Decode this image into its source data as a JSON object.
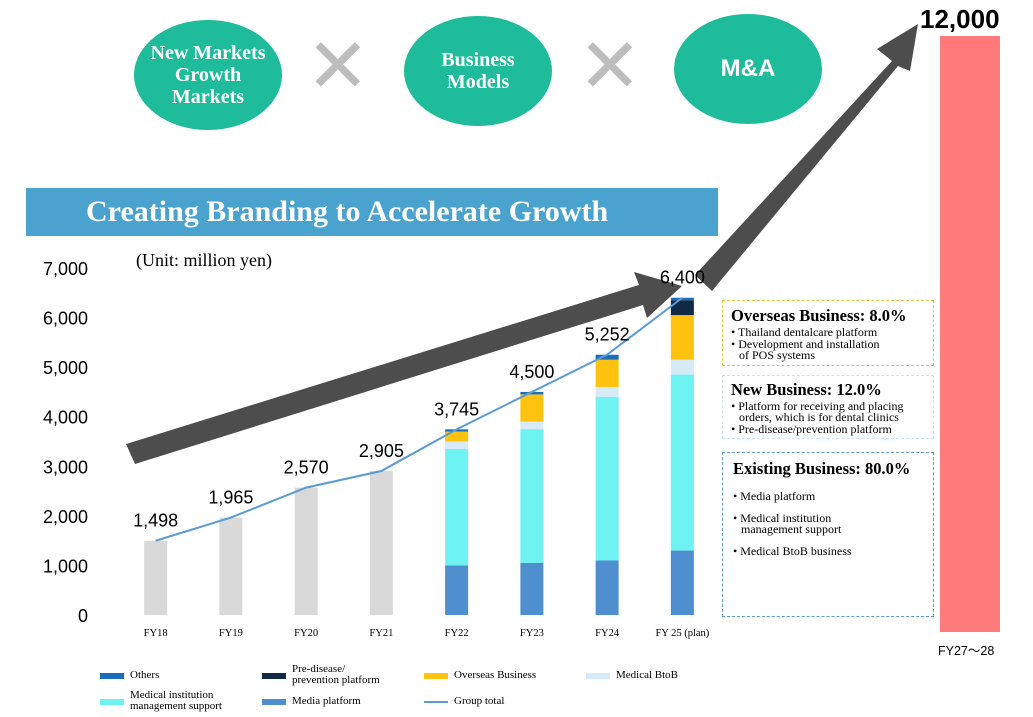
{
  "circles": [
    "New Markets\nGrowth\nMarkets",
    "Business\nModels",
    "M&A"
  ],
  "times_symbol": "✕",
  "banner": "Creating Branding to Accelerate Growth",
  "unit": "(Unit: million yen)",
  "target_value": "12,000",
  "target_label": "FY27～28",
  "chart_data": {
    "type": "bar",
    "categories": [
      "FY18",
      "FY19",
      "FY20",
      "FY21",
      "FY22",
      "FY23",
      "FY24",
      "FY 25 (plan)"
    ],
    "totals": [
      1498,
      1965,
      2570,
      2905,
      3745,
      4500,
      5252,
      6400
    ],
    "total_labels": [
      "1,498",
      "1,965",
      "2,570",
      "2,905",
      "3,745",
      "4,500",
      "5,252",
      "6,400"
    ],
    "y_ticks": [
      "0",
      "1,000",
      "2,000",
      "3,000",
      "4,000",
      "5,000",
      "6,000",
      "7,000"
    ],
    "ylim": [
      0,
      7000
    ],
    "series": [
      {
        "name": "Media platform",
        "color": "#4f8fcf",
        "values": [
          null,
          null,
          null,
          null,
          1000,
          1050,
          1100,
          1300
        ]
      },
      {
        "name": "Medical institution\nmanagement support",
        "color": "#6ff2f2",
        "values": [
          null,
          null,
          null,
          null,
          2350,
          2700,
          3300,
          3550
        ]
      },
      {
        "name": "Medical BtoB",
        "color": "#d6eaf8",
        "values": [
          null,
          null,
          null,
          null,
          150,
          150,
          200,
          300
        ]
      },
      {
        "name": "Overseas Business",
        "color": "#ffc20e",
        "values": [
          null,
          null,
          null,
          null,
          200,
          550,
          550,
          900
        ]
      },
      {
        "name": "Pre-disease/\nprevention platform",
        "color": "#0f2a45",
        "values": [
          null,
          null,
          null,
          null,
          0,
          0,
          0,
          300
        ]
      },
      {
        "name": "Others",
        "color": "#1a6fbd",
        "values": [
          null,
          null,
          null,
          null,
          45,
          50,
          100,
          50
        ]
      }
    ],
    "single_color": "#d9d9d9",
    "group_total": {
      "name": "Group total",
      "color": "#5b9bd5",
      "values": [
        1498,
        1965,
        2570,
        2905,
        3745,
        4500,
        5252,
        6400
      ]
    }
  },
  "legend_order": [
    5,
    4,
    3,
    2,
    1,
    0
  ],
  "panels": [
    {
      "title": "Overseas Business: 8.0%",
      "color": "#f5c242",
      "items": [
        "Thailand dentalcare platform",
        "Development and installation\nof POS systems"
      ]
    },
    {
      "title": "New Business: 12.0%",
      "color": "#c8e6f0",
      "items": [
        "Platform for receiving and placing\norders, which is for dental clinics",
        "Pre-disease/prevention platform"
      ]
    },
    {
      "title": "Existing Business: 80.0%",
      "color": "#5b9bd5",
      "items": [
        "Media platform",
        "Medical institution\nmanagement support",
        "Medical BtoB business"
      ]
    }
  ]
}
